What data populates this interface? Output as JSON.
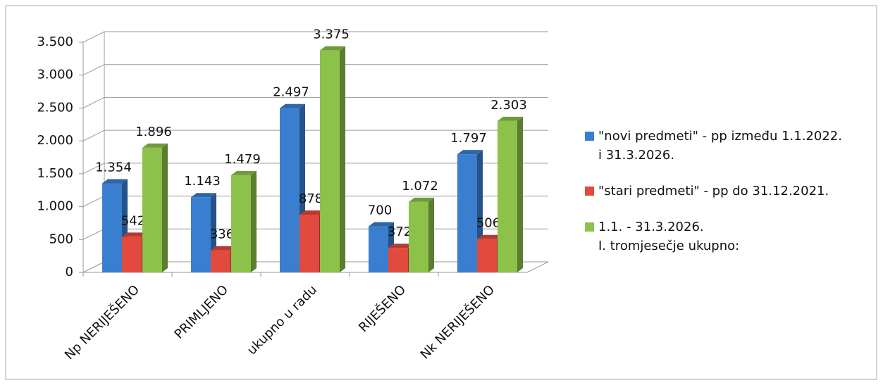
{
  "chart_data": {
    "type": "bar3d",
    "categories": [
      "Np NERIJEŠENO",
      "PRIMLJENO",
      "ukupno u radu",
      "RIJEŠENO",
      "Nk NERIJEŠENO"
    ],
    "series": [
      {
        "name": "\"novi predmeti\" - pp između 1.1.2022.\ni 31.3.2026.",
        "color": "#3a7fcf",
        "values": [
          1354,
          1143,
          2497,
          700,
          1797
        ],
        "value_labels": [
          "1.354",
          "1.143",
          "2.497",
          "700",
          "1.797"
        ]
      },
      {
        "name": "\"stari predmeti\" - pp do 31.12.2021.",
        "color": "#e04a3f",
        "values": [
          542,
          336,
          878,
          372,
          506
        ],
        "value_labels": [
          "542",
          "336",
          "878",
          "372",
          "506"
        ]
      },
      {
        "name": "1.1. -  31.3.2026.\nI. tromjesečje ukupno:",
        "color": "#8cc14a",
        "values": [
          1896,
          1479,
          3375,
          1072,
          2303
        ],
        "value_labels": [
          "1.896",
          "1.479",
          "3.375",
          "1.072",
          "2.303"
        ]
      }
    ],
    "ylim": [
      0,
      3500
    ],
    "yticks": [
      0,
      500,
      {
        "value": 1000,
        "label": "1.000"
      },
      {
        "value": 1500,
        "label": "1.500"
      },
      {
        "value": 2000,
        "label": "2.000"
      },
      {
        "value": 2500,
        "label": "2.500"
      },
      {
        "value": 3000,
        "label": "3.000"
      },
      {
        "value": 3500,
        "label": "3.500"
      }
    ],
    "grid": true,
    "legend": "right"
  }
}
